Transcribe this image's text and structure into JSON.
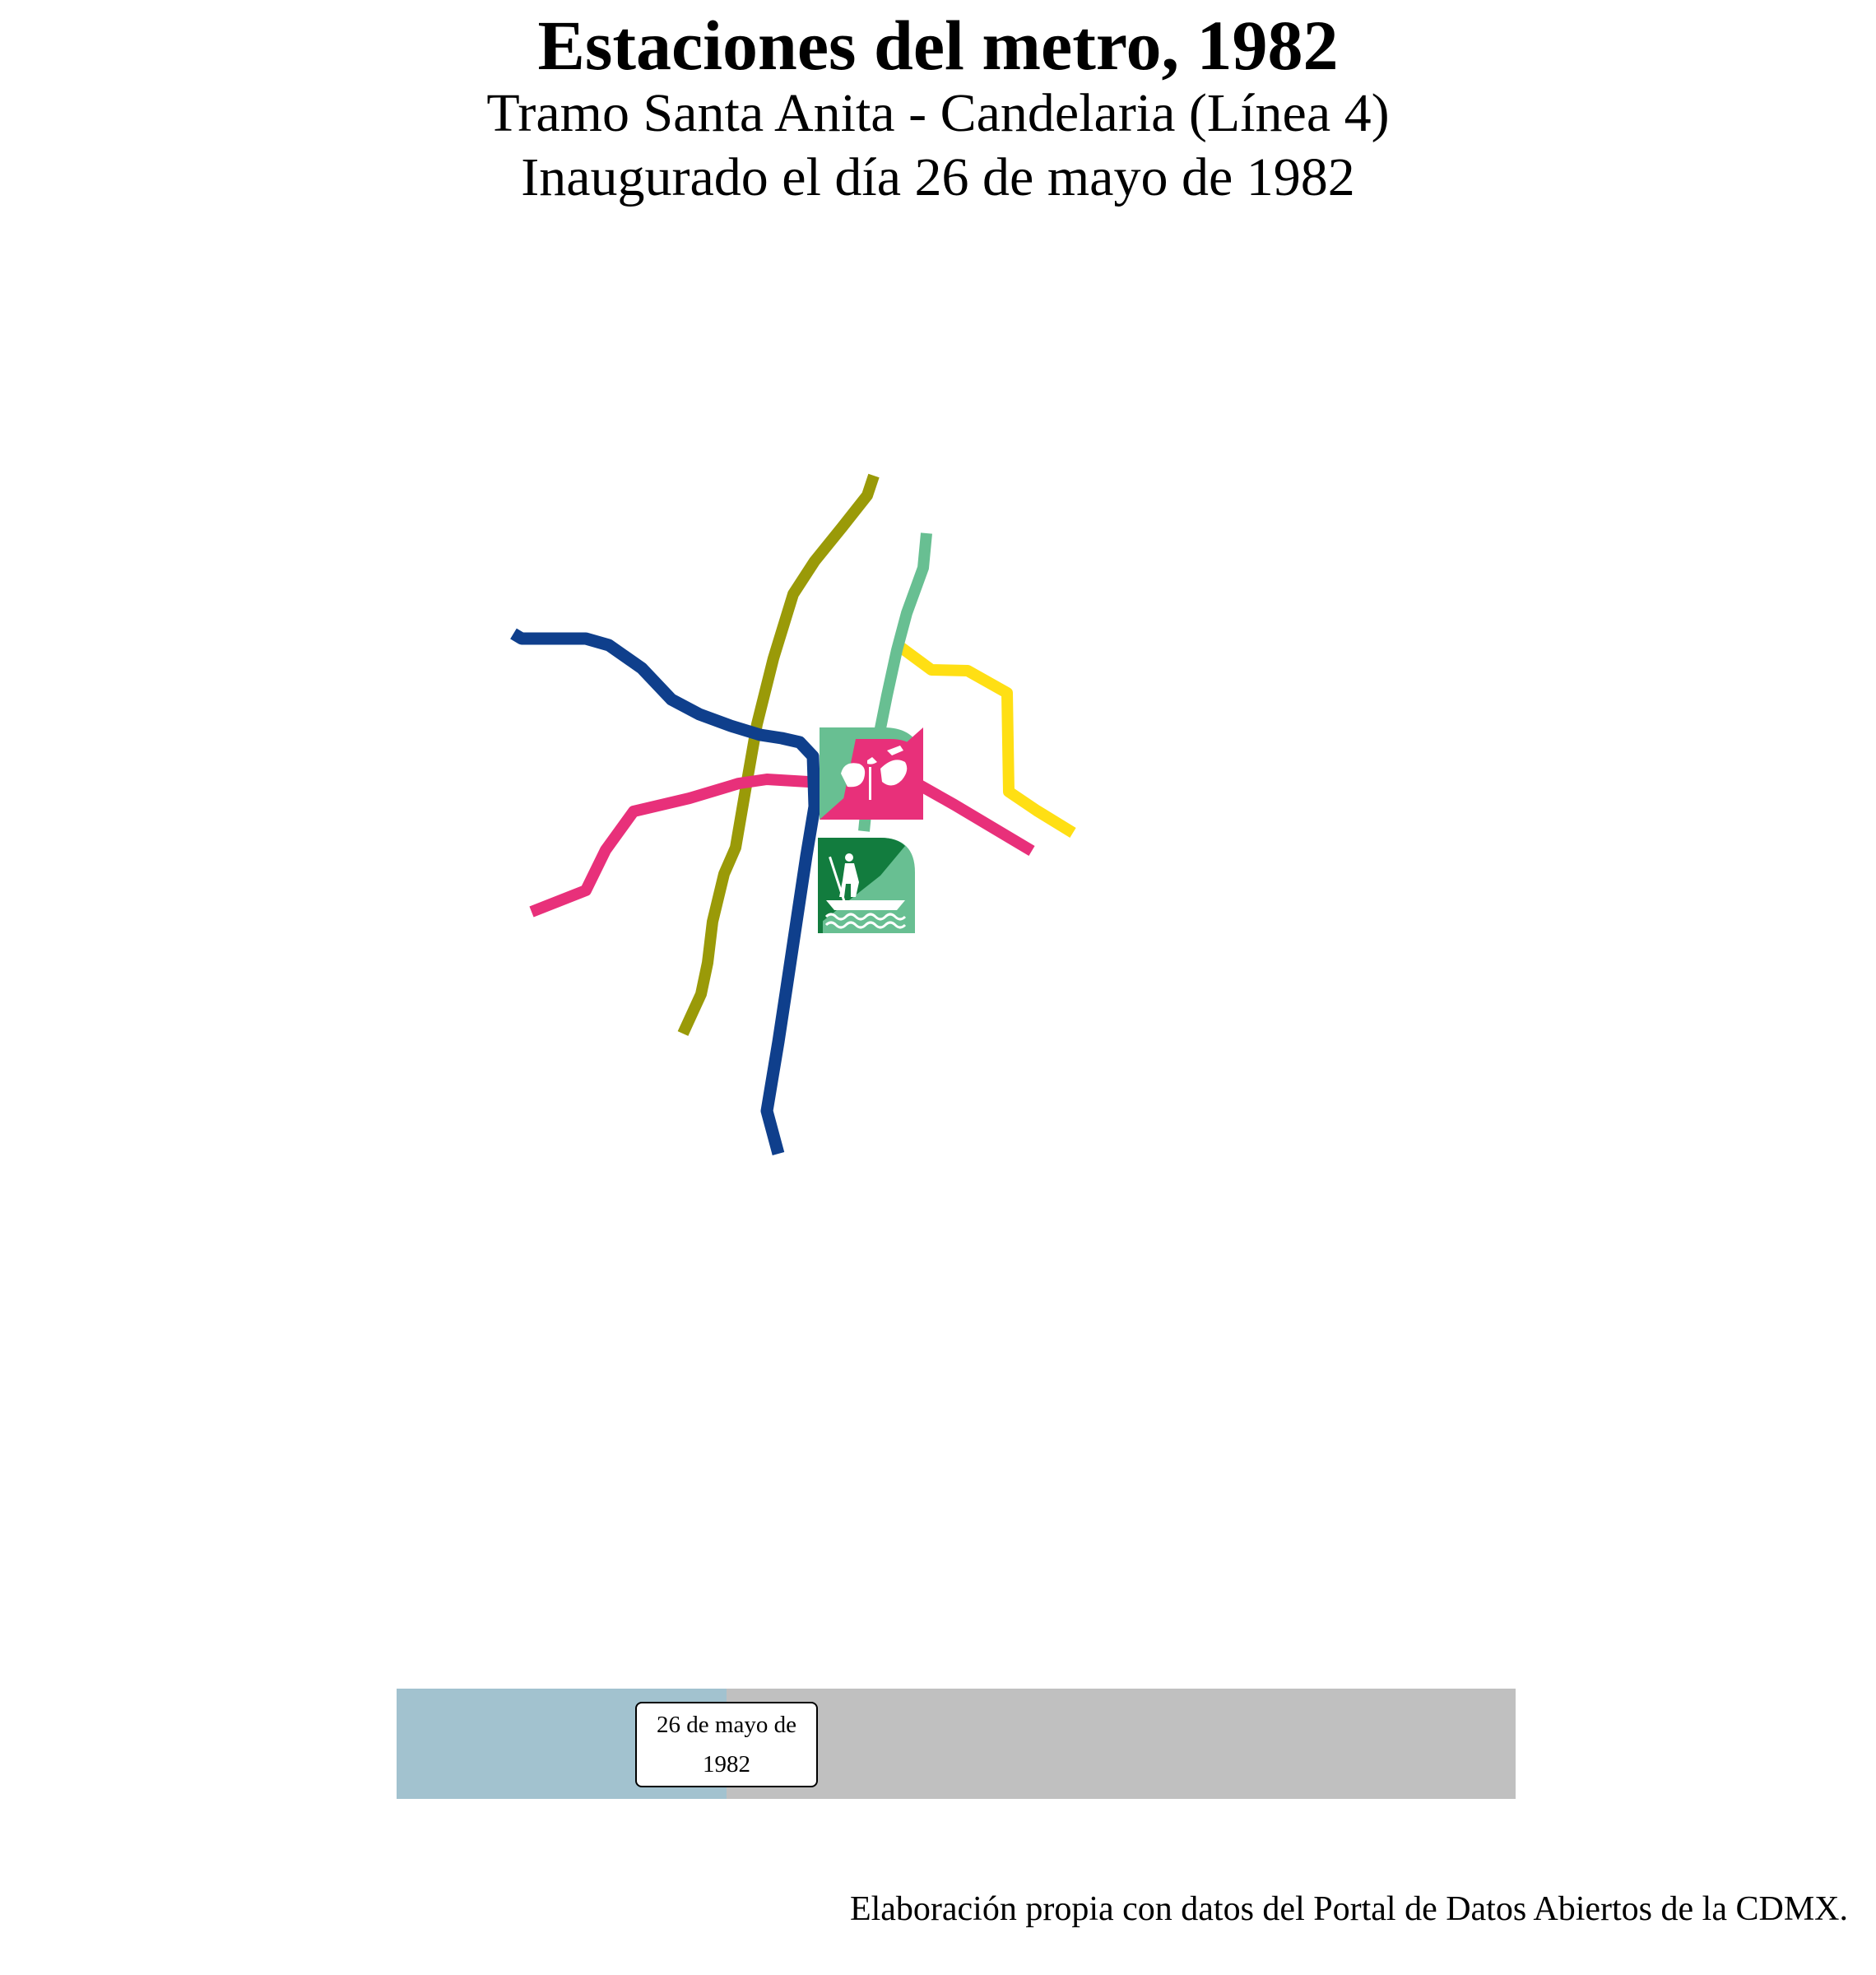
{
  "header": {
    "title": "Estaciones del metro, 1982",
    "subtitle_line1": "Tramo Santa Anita - Candelaria (Línea 4)",
    "subtitle_line2": "Inaugurado el día 26 de mayo de 1982"
  },
  "map": {
    "lines": [
      {
        "color": "#0f3f8c"
      },
      {
        "color": "#e8307a"
      },
      {
        "color": "#9a9a08"
      },
      {
        "color": "#68bf92"
      },
      {
        "color": "#ffdf14"
      }
    ],
    "station_icons": [
      {
        "name": "candelaria-station-icon",
        "colors": [
          "#68bf92",
          "#e8307a"
        ]
      },
      {
        "name": "santa-anita-station-icon",
        "colors": [
          "#68bf92",
          "#127c3e"
        ]
      }
    ]
  },
  "timeline": {
    "label_line1": "26 de mayo de",
    "label_line2": "1982",
    "progress_fraction": 0.295,
    "progress_color": "#a2c2cf",
    "track_color": "#c0c0c0"
  },
  "caption": "Elaboración propia con datos del Portal de Datos Abiertos de la CDMX."
}
